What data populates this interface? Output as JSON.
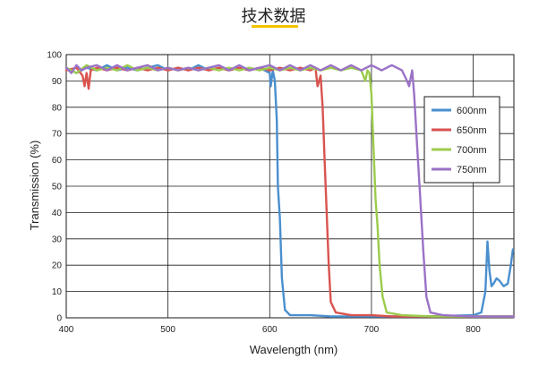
{
  "header": {
    "title": "技术数据"
  },
  "colors": {
    "accent": "#f3c300",
    "grid": "#1a1a1a"
  },
  "chart_data": {
    "type": "line",
    "title": "",
    "xlabel": "Wavelength (nm)",
    "ylabel": "Transmission (%)",
    "xlim": [
      400,
      840
    ],
    "ylim": [
      0,
      100
    ],
    "x_ticks": [
      400,
      500,
      600,
      700,
      800
    ],
    "y_ticks": [
      0,
      10,
      20,
      30,
      40,
      50,
      60,
      70,
      80,
      90,
      100
    ],
    "grid": true,
    "legend": "right",
    "series": [
      {
        "name": "600nm",
        "color": "#4a8fce",
        "points": [
          [
            400,
            95
          ],
          [
            410,
            93
          ],
          [
            420,
            95
          ],
          [
            430,
            94
          ],
          [
            440,
            96
          ],
          [
            450,
            94
          ],
          [
            460,
            95
          ],
          [
            470,
            94
          ],
          [
            480,
            95
          ],
          [
            490,
            96
          ],
          [
            500,
            94
          ],
          [
            510,
            95
          ],
          [
            520,
            94
          ],
          [
            530,
            96
          ],
          [
            540,
            94
          ],
          [
            550,
            95
          ],
          [
            560,
            94
          ],
          [
            570,
            95
          ],
          [
            580,
            94
          ],
          [
            590,
            95
          ],
          [
            600,
            93
          ],
          [
            601,
            88
          ],
          [
            603,
            94
          ],
          [
            605,
            90
          ],
          [
            607,
            75
          ],
          [
            608,
            50
          ],
          [
            610,
            38
          ],
          [
            612,
            15
          ],
          [
            615,
            3
          ],
          [
            620,
            1
          ],
          [
            640,
            1
          ],
          [
            660,
            0.5
          ],
          [
            700,
            0.5
          ],
          [
            750,
            0.5
          ],
          [
            800,
            1
          ],
          [
            808,
            2
          ],
          [
            812,
            10
          ],
          [
            814,
            29
          ],
          [
            816,
            18
          ],
          [
            818,
            12
          ],
          [
            820,
            13
          ],
          [
            823,
            15
          ],
          [
            826,
            14
          ],
          [
            830,
            12
          ],
          [
            834,
            13
          ],
          [
            837,
            20
          ],
          [
            839,
            26
          ]
        ]
      },
      {
        "name": "650nm",
        "color": "#d9534f",
        "points": [
          [
            400,
            94
          ],
          [
            410,
            95
          ],
          [
            416,
            92
          ],
          [
            418,
            88
          ],
          [
            420,
            93
          ],
          [
            422,
            87
          ],
          [
            424,
            94
          ],
          [
            430,
            95
          ],
          [
            440,
            94
          ],
          [
            450,
            95
          ],
          [
            460,
            94
          ],
          [
            470,
            95
          ],
          [
            480,
            94
          ],
          [
            490,
            95
          ],
          [
            500,
            94
          ],
          [
            510,
            95
          ],
          [
            520,
            94
          ],
          [
            530,
            95
          ],
          [
            540,
            94
          ],
          [
            550,
            95
          ],
          [
            560,
            94
          ],
          [
            570,
            95
          ],
          [
            580,
            94
          ],
          [
            590,
            95
          ],
          [
            600,
            94
          ],
          [
            610,
            95
          ],
          [
            620,
            94
          ],
          [
            630,
            95
          ],
          [
            640,
            94
          ],
          [
            645,
            95
          ],
          [
            647,
            88
          ],
          [
            650,
            92
          ],
          [
            652,
            80
          ],
          [
            654,
            60
          ],
          [
            656,
            40
          ],
          [
            658,
            20
          ],
          [
            660,
            6
          ],
          [
            665,
            2
          ],
          [
            680,
            1
          ],
          [
            700,
            1
          ],
          [
            720,
            0.5
          ],
          [
            800,
            0.5
          ],
          [
            840,
            0.5
          ]
        ]
      },
      {
        "name": "700nm",
        "color": "#9ccb4c",
        "points": [
          [
            400,
            95
          ],
          [
            410,
            93
          ],
          [
            420,
            96
          ],
          [
            430,
            94
          ],
          [
            440,
            95
          ],
          [
            450,
            94
          ],
          [
            460,
            96
          ],
          [
            470,
            94
          ],
          [
            480,
            95
          ],
          [
            490,
            94
          ],
          [
            500,
            95
          ],
          [
            510,
            94
          ],
          [
            520,
            95
          ],
          [
            530,
            94
          ],
          [
            540,
            95
          ],
          [
            550,
            94
          ],
          [
            560,
            95
          ],
          [
            570,
            94
          ],
          [
            580,
            95
          ],
          [
            590,
            94
          ],
          [
            600,
            95
          ],
          [
            610,
            94
          ],
          [
            620,
            95
          ],
          [
            630,
            94
          ],
          [
            640,
            95
          ],
          [
            650,
            94
          ],
          [
            660,
            95
          ],
          [
            670,
            94
          ],
          [
            680,
            95
          ],
          [
            690,
            94
          ],
          [
            694,
            90
          ],
          [
            696,
            94
          ],
          [
            698,
            93
          ],
          [
            700,
            85
          ],
          [
            702,
            65
          ],
          [
            704,
            45
          ],
          [
            706,
            35
          ],
          [
            708,
            20
          ],
          [
            711,
            8
          ],
          [
            715,
            2
          ],
          [
            730,
            1
          ],
          [
            760,
            0.5
          ],
          [
            800,
            0.5
          ],
          [
            840,
            0.5
          ]
        ]
      },
      {
        "name": "750nm",
        "color": "#9a72c6",
        "points": [
          [
            400,
            95
          ],
          [
            405,
            93
          ],
          [
            410,
            96
          ],
          [
            415,
            94
          ],
          [
            420,
            95
          ],
          [
            430,
            96
          ],
          [
            440,
            94
          ],
          [
            450,
            96
          ],
          [
            460,
            94
          ],
          [
            470,
            95
          ],
          [
            480,
            96
          ],
          [
            490,
            94
          ],
          [
            500,
            95
          ],
          [
            510,
            94
          ],
          [
            520,
            95
          ],
          [
            530,
            94
          ],
          [
            540,
            95
          ],
          [
            550,
            96
          ],
          [
            560,
            94
          ],
          [
            570,
            96
          ],
          [
            580,
            94
          ],
          [
            590,
            95
          ],
          [
            600,
            96
          ],
          [
            610,
            94
          ],
          [
            620,
            96
          ],
          [
            630,
            94
          ],
          [
            640,
            96
          ],
          [
            650,
            94
          ],
          [
            660,
            96
          ],
          [
            670,
            94
          ],
          [
            680,
            96
          ],
          [
            690,
            94
          ],
          [
            700,
            96
          ],
          [
            710,
            94
          ],
          [
            720,
            96
          ],
          [
            730,
            94
          ],
          [
            735,
            90
          ],
          [
            737,
            88
          ],
          [
            740,
            94
          ],
          [
            742,
            85
          ],
          [
            745,
            65
          ],
          [
            748,
            45
          ],
          [
            751,
            25
          ],
          [
            754,
            8
          ],
          [
            758,
            2
          ],
          [
            770,
            1
          ],
          [
            800,
            0.5
          ],
          [
            840,
            0.5
          ]
        ]
      }
    ]
  }
}
